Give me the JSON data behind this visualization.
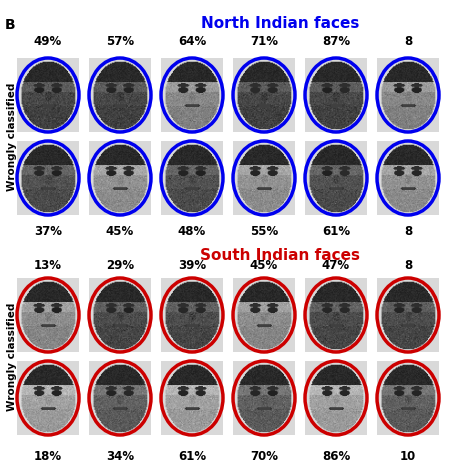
{
  "title_north": "North Indian faces",
  "title_south": "South Indian faces",
  "title_north_color": "#0000EE",
  "title_south_color": "#CC0000",
  "north_top_percents": [
    "49%",
    "57%",
    "64%",
    "71%",
    "87%",
    "8"
  ],
  "north_bottom_percents": [
    "37%",
    "45%",
    "48%",
    "55%",
    "61%",
    "8"
  ],
  "south_top_percents": [
    "13%",
    "29%",
    "39%",
    "45%",
    "47%",
    "8"
  ],
  "south_bottom_percents": [
    "18%",
    "34%",
    "61%",
    "70%",
    "86%",
    "10"
  ],
  "north_border_color": "#0000EE",
  "south_border_color": "#CC0000",
  "label_wrongly_classified": "Wrongly classified",
  "panel_label": "B",
  "background_color": "#FFFFFF",
  "title_fontsize": 11,
  "percent_fontsize": 8.5,
  "label_fontsize": 7.5,
  "panel_fontsize": 10
}
